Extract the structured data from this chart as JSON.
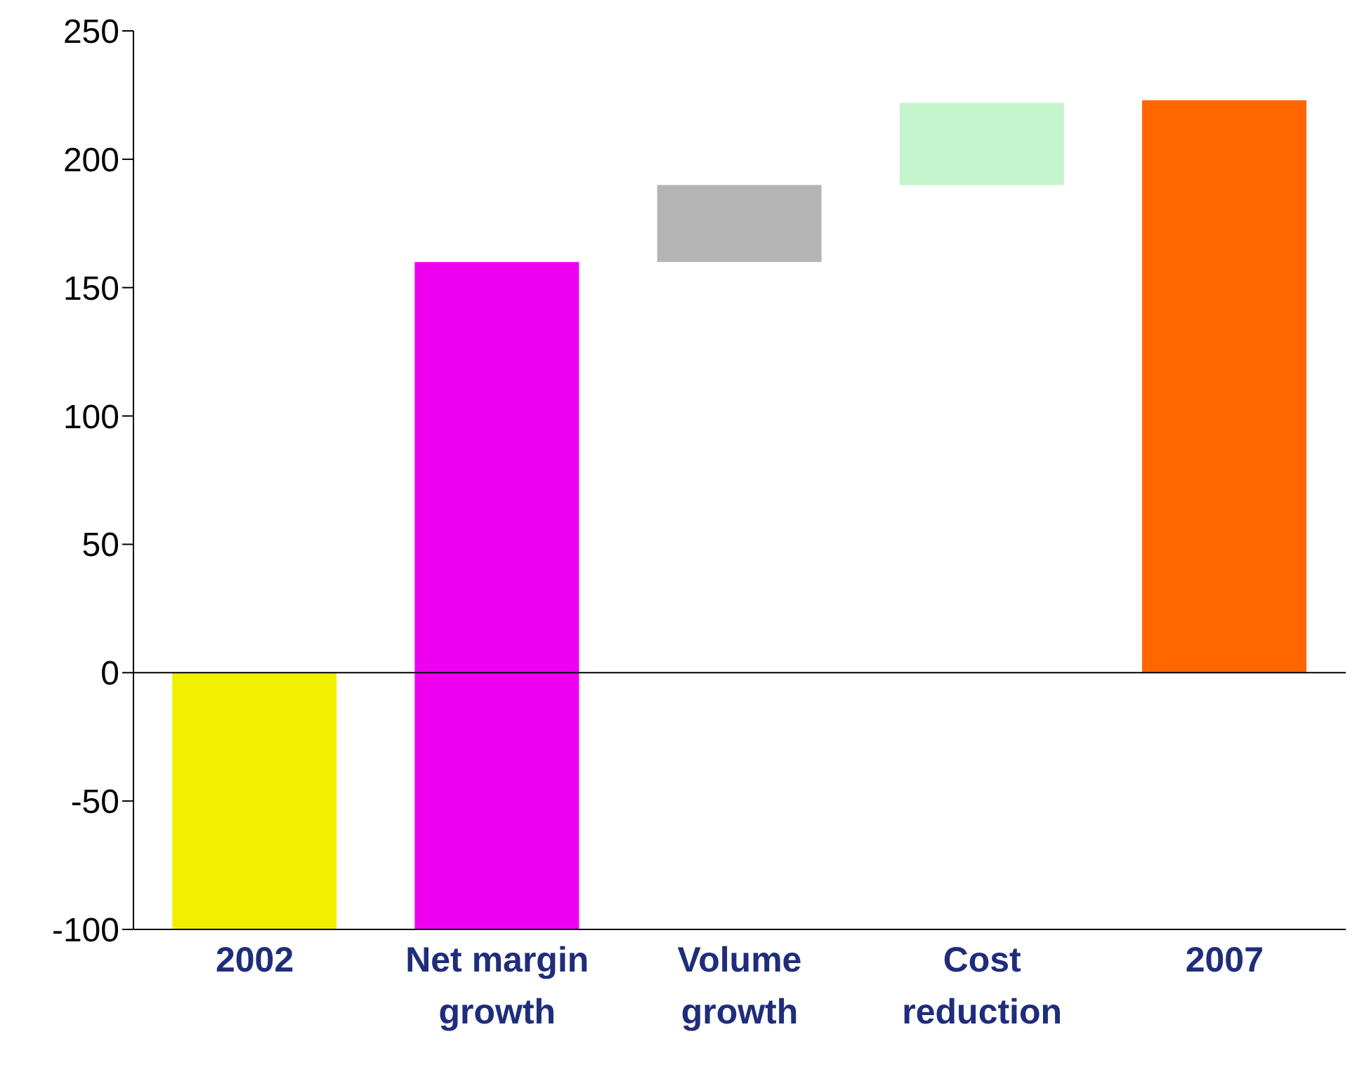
{
  "chart_data": {
    "type": "bar",
    "categories": [
      "2002",
      "Net margin growth",
      "Volume growth",
      "Cost reduction",
      "2007"
    ],
    "values": [
      -100,
      260,
      30,
      32,
      223
    ],
    "base": [
      0,
      -100,
      160,
      190,
      0
    ],
    "colors": [
      "#f0f000",
      "#f000f0",
      "#b4b4b4",
      "#c4f4cc",
      "#ff6600"
    ],
    "ylim": [
      -100,
      250
    ],
    "yticks": [
      -100,
      -50,
      0,
      50,
      100,
      150,
      200,
      250
    ],
    "ref_lines": [
      {
        "axis": "y",
        "value": 0,
        "color": "#000000"
      }
    ],
    "grid": false,
    "legend": false
  }
}
